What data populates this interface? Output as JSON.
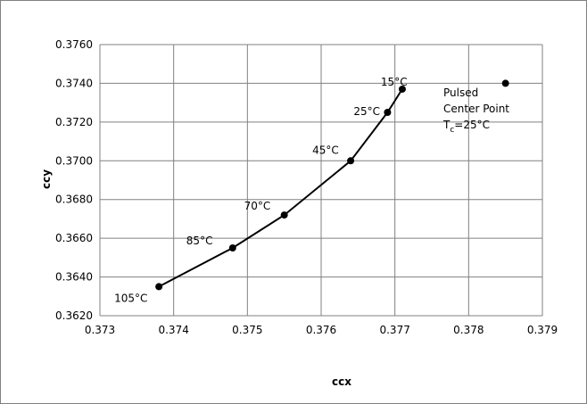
{
  "chart_data": {
    "type": "scatter",
    "xlabel": "ccx",
    "ylabel": "ccy",
    "xlim": [
      0.373,
      0.379
    ],
    "ylim": [
      0.362,
      0.376
    ],
    "x_ticks": [
      "0.373",
      "0.374",
      "0.375",
      "0.376",
      "0.377",
      "0.378",
      "0.379"
    ],
    "y_ticks": [
      "0.3620",
      "0.3640",
      "0.3660",
      "0.3680",
      "0.3700",
      "0.3720",
      "0.3740",
      "0.3760"
    ],
    "grid": true,
    "legend": "none",
    "colors": {
      "series": "#000000",
      "grid": "#808080",
      "border": "#808080"
    },
    "series": [
      {
        "mode": "line+markers",
        "points": [
          {
            "x": 0.3738,
            "y": 0.3635,
            "label": "105°C"
          },
          {
            "x": 0.3748,
            "y": 0.3655,
            "label": "85°C"
          },
          {
            "x": 0.3755,
            "y": 0.3672,
            "label": "70°C"
          },
          {
            "x": 0.3764,
            "y": 0.37,
            "label": "45°C"
          },
          {
            "x": 0.3769,
            "y": 0.3725,
            "label": "25°C"
          },
          {
            "x": 0.3771,
            "y": 0.3737,
            "label": "15°C"
          }
        ]
      },
      {
        "mode": "markers",
        "points": [
          {
            "x": 0.3785,
            "y": 0.374
          }
        ]
      }
    ],
    "annotation": {
      "line1": "Pulsed",
      "line2": "Center Point",
      "line3_prefix": "T",
      "line3_sub": "c",
      "line3_suffix": "=25°C"
    }
  }
}
